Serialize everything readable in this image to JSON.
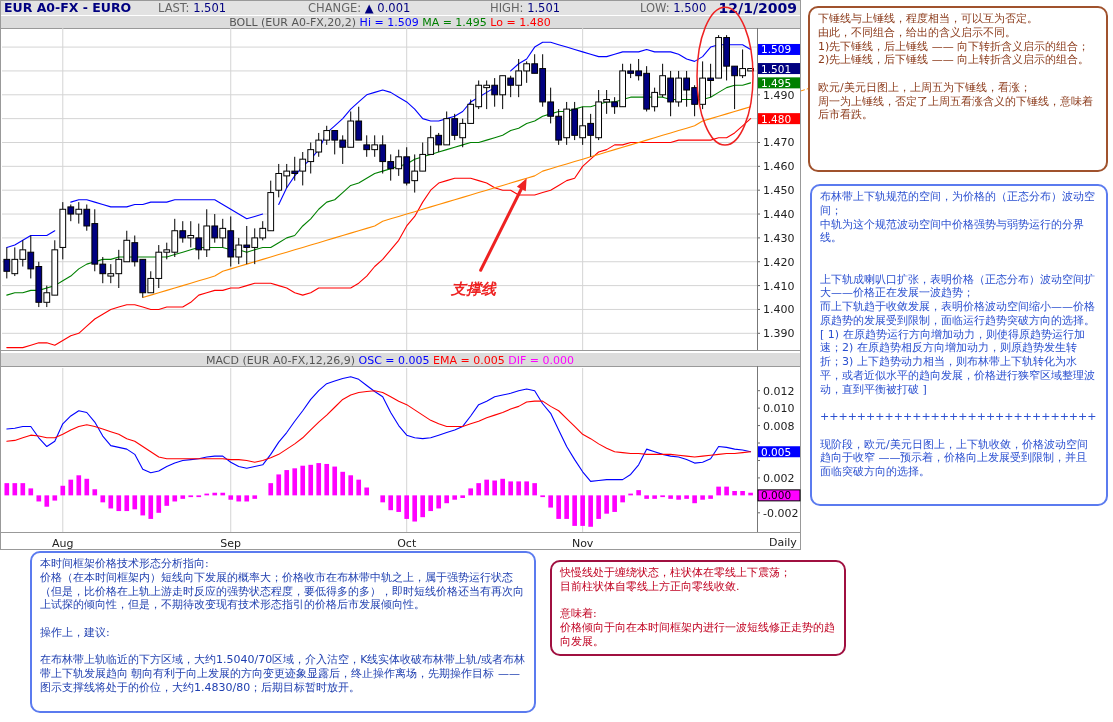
{
  "chart_data": [
    {
      "type": "candlestick",
      "title": "EUR A0-FX - EURO",
      "subtitle": "BOLL (EUR A0-FX,20,2)",
      "categories": [
        null,
        null,
        null,
        null,
        null,
        null,
        null,
        null,
        null,
        null,
        null,
        null,
        null,
        null,
        null,
        null,
        null,
        null,
        null,
        null,
        null,
        null,
        null,
        null,
        null,
        null,
        null,
        null,
        null,
        null,
        null,
        null,
        null,
        null,
        null,
        null,
        null,
        null,
        null,
        null,
        null,
        null,
        null,
        null,
        null,
        null,
        null,
        null,
        null,
        null,
        null,
        null,
        null,
        null,
        null,
        null,
        null,
        null,
        null,
        null,
        null,
        null,
        null,
        null,
        null,
        null,
        null,
        null,
        null,
        null,
        null,
        null,
        null,
        null,
        null,
        null,
        null,
        null,
        null,
        null,
        null,
        null,
        null,
        null,
        null,
        null,
        null,
        null,
        null,
        null,
        null,
        null,
        null,
        null
      ],
      "ohlc": [
        [
          1.421,
          1.426,
          1.413,
          1.416
        ],
        [
          1.415,
          1.426,
          1.414,
          1.421
        ],
        [
          1.421,
          1.429,
          1.418,
          1.425
        ],
        [
          1.424,
          1.431,
          1.413,
          1.417
        ],
        [
          1.418,
          1.42,
          1.401,
          1.403
        ],
        [
          1.403,
          1.41,
          1.401,
          1.407
        ],
        [
          1.406,
          1.429,
          1.406,
          1.425
        ],
        [
          1.426,
          1.445,
          1.421,
          1.442
        ],
        [
          1.443,
          1.444,
          1.437,
          1.44
        ],
        [
          1.44,
          1.445,
          1.436,
          1.442
        ],
        [
          1.442,
          1.444,
          1.433,
          1.435
        ],
        [
          1.436,
          1.442,
          1.416,
          1.419
        ],
        [
          1.419,
          1.422,
          1.411,
          1.415
        ],
        [
          1.414,
          1.419,
          1.411,
          1.415
        ],
        [
          1.415,
          1.425,
          1.409,
          1.421
        ],
        [
          1.42,
          1.433,
          1.42,
          1.429
        ],
        [
          1.428,
          1.431,
          1.418,
          1.42
        ],
        [
          1.421,
          1.421,
          1.405,
          1.407
        ],
        [
          1.407,
          1.416,
          1.407,
          1.413
        ],
        [
          1.413,
          1.427,
          1.409,
          1.424
        ],
        [
          1.424,
          1.428,
          1.421,
          1.425
        ],
        [
          1.424,
          1.438,
          1.422,
          1.433
        ],
        [
          1.433,
          1.437,
          1.428,
          1.43
        ],
        [
          1.43,
          1.437,
          1.426,
          1.431
        ],
        [
          1.43,
          1.436,
          1.421,
          1.425
        ],
        [
          1.425,
          1.442,
          1.422,
          1.435
        ],
        [
          1.435,
          1.44,
          1.428,
          1.43
        ],
        [
          1.43,
          1.438,
          1.426,
          1.434
        ],
        [
          1.433,
          1.439,
          1.418,
          1.422
        ],
        [
          1.422,
          1.43,
          1.419,
          1.427
        ],
        [
          1.427,
          1.435,
          1.419,
          1.426
        ],
        [
          1.426,
          1.434,
          1.419,
          1.43
        ],
        [
          1.43,
          1.437,
          1.429,
          1.434
        ],
        [
          1.433,
          1.454,
          1.433,
          1.449
        ],
        [
          1.45,
          1.461,
          1.447,
          1.457
        ],
        [
          1.456,
          1.461,
          1.451,
          1.458
        ],
        [
          1.458,
          1.464,
          1.454,
          1.457
        ],
        [
          1.458,
          1.466,
          1.452,
          1.463
        ],
        [
          1.462,
          1.47,
          1.457,
          1.467
        ],
        [
          1.466,
          1.474,
          1.464,
          1.471
        ],
        [
          1.471,
          1.477,
          1.469,
          1.475
        ],
        [
          1.475,
          1.475,
          1.465,
          1.471
        ],
        [
          1.471,
          1.473,
          1.461,
          1.468
        ],
        [
          1.468,
          1.483,
          1.468,
          1.479
        ],
        [
          1.479,
          1.485,
          1.471,
          1.471
        ],
        [
          1.469,
          1.473,
          1.464,
          1.467
        ],
        [
          1.467,
          1.473,
          1.464,
          1.469
        ],
        [
          1.469,
          1.473,
          1.457,
          1.462
        ],
        [
          1.462,
          1.465,
          1.454,
          1.459
        ],
        [
          1.459,
          1.467,
          1.456,
          1.464
        ],
        [
          1.464,
          1.468,
          1.452,
          1.453
        ],
        [
          1.454,
          1.465,
          1.449,
          1.458
        ],
        [
          1.458,
          1.47,
          1.458,
          1.465
        ],
        [
          1.465,
          1.477,
          1.465,
          1.472
        ],
        [
          1.473,
          1.474,
          1.466,
          1.469
        ],
        [
          1.469,
          1.483,
          1.469,
          1.48
        ],
        [
          1.48,
          1.482,
          1.471,
          1.473
        ],
        [
          1.472,
          1.48,
          1.468,
          1.478
        ],
        [
          1.478,
          1.488,
          1.478,
          1.486
        ],
        [
          1.485,
          1.496,
          1.484,
          1.494
        ],
        [
          1.493,
          1.496,
          1.484,
          1.494
        ],
        [
          1.494,
          1.497,
          1.485,
          1.49
        ],
        [
          1.49,
          1.498,
          1.484,
          1.498
        ],
        [
          1.497,
          1.498,
          1.489,
          1.494
        ],
        [
          1.494,
          1.505,
          1.489,
          1.5
        ],
        [
          1.5,
          1.504,
          1.495,
          1.503
        ],
        [
          1.503,
          1.507,
          1.499,
          1.499
        ],
        [
          1.501,
          1.507,
          1.485,
          1.487
        ],
        [
          1.487,
          1.493,
          1.478,
          1.481
        ],
        [
          1.481,
          1.484,
          1.469,
          1.471
        ],
        [
          1.472,
          1.487,
          1.469,
          1.484
        ],
        [
          1.484,
          1.487,
          1.471,
          1.473
        ],
        [
          1.472,
          1.485,
          1.469,
          1.477
        ],
        [
          1.478,
          1.482,
          1.464,
          1.473
        ],
        [
          1.472,
          1.492,
          1.471,
          1.487
        ],
        [
          1.487,
          1.492,
          1.482,
          1.488
        ],
        [
          1.487,
          1.489,
          1.482,
          1.485
        ],
        [
          1.485,
          1.503,
          1.485,
          1.5
        ],
        [
          1.5,
          1.503,
          1.497,
          1.499
        ],
        [
          1.5,
          1.505,
          1.496,
          1.498
        ],
        [
          1.499,
          1.502,
          1.483,
          1.484
        ],
        [
          1.485,
          1.493,
          1.483,
          1.491
        ],
        [
          1.49,
          1.503,
          1.489,
          1.498
        ],
        [
          1.497,
          1.5,
          1.481,
          1.487
        ],
        [
          1.487,
          1.5,
          1.485,
          1.497
        ],
        [
          1.497,
          1.5,
          1.485,
          1.492
        ],
        [
          1.493,
          1.494,
          1.481,
          1.486
        ],
        [
          1.486,
          1.504,
          1.484,
          1.497
        ],
        [
          1.497,
          1.503,
          1.489,
          1.496
        ],
        [
          1.497,
          1.515,
          1.497,
          1.514
        ],
        [
          1.514,
          1.515,
          1.496,
          1.502
        ],
        [
          1.502,
          1.502,
          1.484,
          1.498
        ],
        [
          1.498,
          1.509,
          1.497,
          1.501
        ],
        [
          1.5,
          1.501,
          1.5,
          1.501
        ]
      ],
      "value_labels": [
        null,
        null,
        null,
        null,
        null,
        null,
        null,
        null,
        null,
        null,
        null,
        null,
        null,
        null,
        null,
        null,
        null,
        null,
        null,
        null,
        null,
        null,
        null,
        null,
        null,
        null,
        null,
        null,
        null,
        null,
        null,
        null,
        null,
        null,
        null,
        null,
        null,
        null,
        null,
        null,
        null,
        null,
        null,
        null,
        null,
        null,
        null,
        null,
        null,
        null,
        null,
        null,
        null,
        null,
        null,
        null,
        null,
        null,
        null,
        null,
        null,
        null,
        null,
        null,
        null,
        null,
        null,
        null,
        null,
        null,
        null,
        null,
        null,
        null,
        null,
        null,
        null,
        null,
        null,
        null,
        null,
        null,
        null,
        null,
        null,
        null,
        null,
        null,
        null,
        null,
        null,
        null,
        null,
        "1.501"
      ],
      "series": [
        {
          "type": "line",
          "name": "Hi = 1.509",
          "color": "#0000ff",
          "values": [
            1.426,
            1.427,
            1.429,
            1.431,
            1.431,
            1.431,
            1.433,
            null,
            1.445,
            1.446,
            1.446,
            1.445,
            1.444,
            1.443,
            1.443,
            1.443,
            1.444,
            1.444,
            1.445,
            1.445,
            1.445,
            1.446,
            1.446,
            1.446,
            1.446,
            1.446,
            1.446,
            1.444,
            1.442,
            1.44,
            1.438,
            1.439,
            1.44,
            null,
            1.444,
            1.451,
            1.456,
            1.46,
            1.463,
            1.467,
            1.474,
            1.477,
            1.48,
            1.484,
            1.487,
            1.49,
            1.491,
            1.492,
            1.491,
            1.489,
            1.487,
            1.484,
            1.48,
            1.479,
            1.479,
            1.48,
            1.481,
            1.483,
            1.487,
            1.489,
            1.491,
            1.493,
            null,
            1.5,
            1.503,
            1.505,
            1.51,
            1.512,
            1.512,
            1.511,
            1.51,
            1.509,
            1.508,
            1.507,
            1.506,
            1.506,
            1.507,
            1.508,
            1.508,
            1.508,
            1.509,
            1.508,
            1.508,
            1.508,
            1.507,
            1.505,
            1.504,
            1.506,
            1.51,
            1.511,
            1.511,
            1.511,
            1.511,
            1.509
          ],
          "value_labels": [
            null,
            null,
            null,
            null,
            null,
            null,
            null,
            null,
            null,
            null,
            null,
            null,
            null,
            null,
            null,
            null,
            null,
            null,
            null,
            null,
            null,
            null,
            null,
            null,
            null,
            null,
            null,
            null,
            null,
            null,
            null,
            null,
            null,
            null,
            null,
            null,
            null,
            null,
            null,
            null,
            null,
            null,
            null,
            null,
            null,
            null,
            null,
            null,
            null,
            null,
            null,
            null,
            null,
            null,
            null,
            null,
            null,
            null,
            null,
            null,
            null,
            null,
            null,
            null,
            null,
            null,
            null,
            null,
            null,
            null,
            null,
            null,
            null,
            null,
            null,
            null,
            null,
            null,
            null,
            null,
            null,
            null,
            null,
            null,
            null,
            null,
            null,
            null,
            null,
            null,
            null,
            null,
            null,
            "1.509"
          ]
        },
        {
          "type": "line",
          "name": "MA = 1.495",
          "color": "#008000",
          "values": [
            1.406,
            1.407,
            1.407,
            1.408,
            1.408,
            1.409,
            1.41,
            1.412,
            1.414,
            1.417,
            1.419,
            1.42,
            1.421,
            1.421,
            1.422,
            1.422,
            1.422,
            1.422,
            1.422,
            1.422,
            1.422,
            1.423,
            1.424,
            1.425,
            1.426,
            1.426,
            1.426,
            1.426,
            1.425,
            1.425,
            1.424,
            1.425,
            1.426,
            1.426,
            1.428,
            1.43,
            1.431,
            1.435,
            1.438,
            1.442,
            1.445,
            1.446,
            1.449,
            1.452,
            1.453,
            1.455,
            1.457,
            1.458,
            1.459,
            1.46,
            1.461,
            1.463,
            1.464,
            1.465,
            1.466,
            1.467,
            1.468,
            1.469,
            1.47,
            1.47,
            1.471,
            1.472,
            1.473,
            1.475,
            1.476,
            1.478,
            1.479,
            1.481,
            1.482,
            1.483,
            1.483,
            1.484,
            1.485,
            1.485,
            1.486,
            1.487,
            1.487,
            1.488,
            1.489,
            1.489,
            1.489,
            1.489,
            1.489,
            1.488,
            1.488,
            1.488,
            1.488,
            1.488,
            1.489,
            1.491,
            1.493,
            1.494,
            1.494,
            1.495
          ],
          "value_labels": [
            null,
            null,
            null,
            null,
            null,
            null,
            null,
            null,
            null,
            null,
            null,
            null,
            null,
            null,
            null,
            null,
            null,
            null,
            null,
            null,
            null,
            null,
            null,
            null,
            null,
            null,
            null,
            null,
            null,
            null,
            null,
            null,
            null,
            null,
            null,
            null,
            null,
            null,
            null,
            null,
            null,
            null,
            null,
            null,
            null,
            null,
            null,
            null,
            null,
            null,
            null,
            null,
            null,
            null,
            null,
            null,
            null,
            null,
            null,
            null,
            null,
            null,
            null,
            null,
            null,
            null,
            null,
            null,
            null,
            null,
            null,
            null,
            null,
            null,
            null,
            null,
            null,
            null,
            null,
            null,
            null,
            null,
            null,
            null,
            null,
            null,
            null,
            null,
            null,
            null,
            null,
            null,
            null,
            "1.495"
          ]
        },
        {
          "type": "line",
          "name": "Lo = 1.480",
          "color": "#ff0000",
          "values": [
            1.384,
            1.384,
            1.384,
            1.385,
            1.386,
            1.386,
            1.385,
            1.387,
            1.389,
            1.39,
            1.393,
            1.396,
            1.398,
            1.4,
            1.401,
            1.402,
            1.402,
            1.401,
            1.4,
            1.4,
            1.401,
            1.401,
            1.401,
            1.403,
            1.406,
            1.407,
            1.408,
            1.408,
            1.409,
            1.409,
            1.41,
            1.411,
            1.411,
            1.411,
            1.41,
            1.409,
            1.407,
            1.406,
            1.407,
            1.409,
            1.409,
            1.409,
            1.409,
            1.409,
            1.411,
            1.414,
            1.418,
            1.421,
            1.425,
            1.429,
            1.435,
            1.439,
            1.445,
            1.45,
            1.453,
            1.454,
            1.455,
            1.455,
            1.455,
            1.454,
            1.453,
            1.451,
            1.45,
            1.45,
            1.448,
            1.448,
            1.448,
            1.449,
            1.45,
            1.452,
            1.454,
            1.455,
            1.46,
            1.463,
            1.466,
            1.467,
            1.469,
            1.469,
            1.47,
            1.47,
            1.47,
            1.47,
            1.47,
            1.47,
            1.471,
            1.471,
            1.471,
            1.471,
            1.471,
            1.472,
            1.472,
            1.474,
            1.477,
            1.48
          ],
          "value_labels": [
            null,
            null,
            null,
            null,
            null,
            null,
            null,
            null,
            null,
            null,
            null,
            null,
            null,
            null,
            null,
            null,
            null,
            null,
            null,
            null,
            null,
            null,
            null,
            null,
            null,
            null,
            null,
            null,
            null,
            null,
            null,
            null,
            null,
            null,
            null,
            null,
            null,
            null,
            null,
            null,
            null,
            null,
            null,
            null,
            null,
            null,
            null,
            null,
            null,
            null,
            null,
            null,
            null,
            null,
            null,
            null,
            null,
            null,
            null,
            null,
            null,
            null,
            null,
            null,
            null,
            null,
            null,
            null,
            null,
            null,
            null,
            null,
            null,
            null,
            null,
            null,
            null,
            null,
            null,
            null,
            null,
            null,
            null,
            null,
            null,
            null,
            null,
            null,
            null,
            null,
            null,
            null,
            null,
            "1.480"
          ]
        },
        {
          "type": "line",
          "color": "#ff8c00",
          "values": [
            null,
            null,
            null,
            null,
            null,
            null,
            null,
            null,
            null,
            null,
            null,
            null,
            null,
            null,
            null,
            null,
            null,
            1.405,
            1.406,
            1.407,
            1.408,
            1.409,
            1.41,
            1.411,
            1.412,
            1.413,
            1.414,
            1.416,
            1.417,
            1.418,
            1.419,
            1.42,
            1.421,
            1.422,
            1.423,
            1.424,
            1.425,
            1.426,
            1.427,
            1.428,
            1.429,
            1.43,
            1.431,
            1.432,
            1.433,
            1.434,
            1.435,
            1.437,
            1.438,
            1.439,
            1.44,
            1.441,
            1.442,
            1.443,
            1.444,
            1.445,
            1.446,
            1.447,
            1.448,
            1.449,
            1.45,
            1.451,
            1.452,
            1.453,
            1.454,
            1.455,
            1.456,
            1.458,
            1.459,
            1.46,
            1.461,
            1.462,
            1.463,
            1.464,
            1.465,
            1.466,
            1.467,
            1.468,
            1.469,
            1.47,
            1.471,
            1.472,
            1.473,
            1.474,
            1.475,
            1.476,
            1.477,
            1.479,
            1.48,
            1.481,
            1.482,
            1.483,
            1.484,
            1.485
          ]
        }
      ],
      "ylim": [
        1.383,
        1.518
      ],
      "yticks": [
        {
          "value": 1.39,
          "label": "1.390"
        },
        {
          "value": 1.4,
          "label": "1.400"
        },
        {
          "value": 1.41,
          "label": "1.410"
        },
        {
          "value": 1.42,
          "label": "1.420"
        },
        {
          "value": 1.43,
          "label": "1.430"
        },
        {
          "value": 1.44,
          "label": "1.440"
        },
        {
          "value": 1.45,
          "label": "1.450"
        },
        {
          "value": 1.46,
          "label": "1.460"
        },
        {
          "value": 1.47,
          "label": "1.470"
        },
        {
          "value": 1.48,
          "label": null
        },
        {
          "value": 1.49,
          "label": "1.490"
        },
        {
          "value": 1.5,
          "label": null
        },
        {
          "value": 1.51,
          "label": null
        }
      ],
      "grid": true,
      "tick_labels": "y",
      "annotations": [
        "LAST: 1.501",
        "CHANGE: ▲ 0.001",
        "HIGH: 1.501",
        "LOW: 1.500",
        "12/1/2009",
        "支撑线",
        "下锤线与上锤线，程度相当，可以互为否定。",
        "由此，不同组合，给出的含义启示不同。",
        "1)先下锤线，后上锤线 —— 向下转折含义启示的组合；",
        "2)先上锤线，后下锤线 —— 向上转折含义启示的组合。",
        "欧元/美元日图上，上周五为下锤线，看涨；",
        "周一为上锤线，否定了上周五看涨含义的下锤线，意味着后市看跌。",
        "布林带上下轨规范的空间，为价格的（正态分布）波动空间；",
        "中轨为这个规范波动空间中价格强势与弱势运行的分界线。",
        "上下轨成喇叭口扩张，表明价格（正态分布）波动空间扩大——价格正在发展一波趋势；",
        "而上下轨趋于收敛发展，表明价格波动空间缩小——价格原趋势的发展受到限制，面临运行趋势突破方向的选择。[ 1) 在原趋势运行方向增加动力，则使得原趋势运行加速；2) 在原趋势相反方向增加动力，则原趋势发生转折；3) 上下趋势动力相当，则布林带上下轨转化为水平，或者近似水平的趋向发展，价格进行狭窄区域整理波动，直到平衡被打破 ]",
        "++++++++++++++++++++++++++++++",
        "现阶段，欧元/美元日图上，上下轨收敛，价格波动空间趋向于收窄 ——预示着，价格向上发展受到限制，并且面临突破方向的选择。",
        "本时间框架价格技术形态分析指向:",
        "价格（在本时间框架内）短线向下发展的概率大；价格收市在布林带中轨之上，属于强势运行状态（但是，比价格在上轨上游走时反应的强势状态程度，要低得多的多），即时短线价格还当有再次向上试探的倾向性，但是，不期待改变现有技术形态指引的价格后市发展倾向性。",
        "操作上，建议:",
        "在布林带上轨临近的下方区域，大约1.5040/70区域，介入沽空，K线实体收破布林带上轨/或者布林带上下轨发展趋向 朝向有利于向上发展的方向变更迹象显露后，终止操作离场，先期操作目标 —— 图示支撑线将处于的价位，大约1.4830/80；后期目标暂时放开。"
      ]
    },
    {
      "type": "line",
      "title": "MACD (EUR A0-FX,12,26,9)",
      "categories": [
        null,
        null,
        null,
        null,
        null,
        null,
        null,
        "Aug",
        null,
        null,
        null,
        null,
        null,
        null,
        null,
        null,
        null,
        null,
        null,
        null,
        null,
        null,
        null,
        null,
        null,
        null,
        null,
        null,
        "Sep",
        null,
        null,
        null,
        null,
        null,
        null,
        null,
        null,
        null,
        null,
        null,
        null,
        null,
        null,
        null,
        null,
        null,
        null,
        null,
        null,
        null,
        "Oct",
        null,
        null,
        null,
        null,
        null,
        null,
        null,
        null,
        null,
        null,
        null,
        null,
        null,
        null,
        null,
        null,
        null,
        null,
        null,
        null,
        null,
        "Nov",
        null,
        null,
        null,
        null,
        null,
        null,
        null,
        null,
        null,
        null,
        null,
        null,
        null,
        null,
        null,
        null,
        null,
        null,
        null,
        null,
        null
      ],
      "series": [
        {
          "type": "line",
          "name": "OSC = 0.005",
          "color": "#0000ff",
          "values": [
            0.0076,
            0.0077,
            0.0079,
            0.0079,
            0.0066,
            0.0056,
            0.0062,
            0.0082,
            0.0091,
            0.0097,
            0.0095,
            0.0084,
            0.0068,
            0.0057,
            0.0055,
            0.0053,
            0.0047,
            0.003,
            0.0026,
            0.0028,
            0.0033,
            0.0037,
            0.004,
            0.0041,
            0.0042,
            0.0044,
            0.0045,
            0.0045,
            0.0038,
            0.0033,
            0.0031,
            0.0033,
            0.0035,
            0.0047,
            0.0061,
            0.0072,
            0.0085,
            0.0097,
            0.011,
            0.012,
            0.0128,
            0.0131,
            0.0134,
            0.0136,
            0.0133,
            0.0126,
            0.0119,
            0.0113,
            0.0095,
            0.008,
            0.0069,
            0.0066,
            0.0065,
            0.0066,
            0.0069,
            0.0072,
            0.0075,
            0.0079,
            0.0091,
            0.0104,
            0.0108,
            0.0113,
            0.0115,
            0.0117,
            0.012,
            0.0122,
            0.012,
            0.0105,
            0.0094,
            0.0075,
            0.0056,
            0.0041,
            0.0027,
            0.0016,
            0.0017,
            0.0018,
            0.0018,
            0.0018,
            0.0024,
            0.0035,
            0.0053,
            0.005,
            0.0047,
            0.0045,
            0.0044,
            0.0041,
            0.0037,
            0.0038,
            0.0042,
            0.0056,
            0.0055,
            0.0053,
            0.0052,
            0.005
          ],
          "value_labels": [
            null,
            null,
            null,
            null,
            null,
            null,
            null,
            null,
            null,
            null,
            null,
            null,
            null,
            null,
            null,
            null,
            null,
            null,
            null,
            null,
            null,
            null,
            null,
            null,
            null,
            null,
            null,
            null,
            null,
            null,
            null,
            null,
            null,
            null,
            null,
            null,
            null,
            null,
            null,
            null,
            null,
            null,
            null,
            null,
            null,
            null,
            null,
            null,
            null,
            null,
            null,
            null,
            null,
            null,
            null,
            null,
            null,
            null,
            null,
            null,
            null,
            null,
            null,
            null,
            null,
            null,
            null,
            null,
            null,
            null,
            null,
            null,
            null,
            null,
            null,
            null,
            null,
            null,
            null,
            null,
            null,
            null,
            null,
            null,
            null,
            null,
            null,
            null,
            null,
            null,
            null,
            null,
            null,
            "0.005"
          ]
        },
        {
          "type": "line",
          "name": "EMA = 0.005",
          "color": "#ff0000",
          "values": [
            0.0062,
            0.0063,
            0.0066,
            0.0069,
            0.0068,
            0.0066,
            0.0066,
            0.007,
            0.0075,
            0.0079,
            0.0081,
            0.0079,
            0.0076,
            0.0073,
            0.007,
            0.0065,
            0.0062,
            0.0056,
            0.005,
            0.0044,
            0.0042,
            0.0042,
            0.0042,
            0.0042,
            0.0042,
            0.0042,
            0.0042,
            0.0042,
            0.0041,
            0.0041,
            0.004,
            0.0038,
            0.004,
            0.0043,
            0.0047,
            0.0053,
            0.0059,
            0.0066,
            0.0075,
            0.0084,
            0.0092,
            0.0101,
            0.011,
            0.0115,
            0.0118,
            0.0119,
            0.012,
            0.0118,
            0.0113,
            0.0108,
            0.0104,
            0.0098,
            0.0092,
            0.0086,
            0.0082,
            0.0079,
            0.0079,
            0.0079,
            0.0082,
            0.0085,
            0.0089,
            0.0092,
            0.0095,
            0.0099,
            0.0102,
            0.0107,
            0.0108,
            0.0108,
            0.0102,
            0.0097,
            0.0088,
            0.0079,
            0.007,
            0.0065,
            0.0059,
            0.0054,
            0.005,
            0.0049,
            0.0048,
            0.0048,
            0.0047,
            0.0047,
            0.0047,
            0.0047,
            0.0046,
            0.0045,
            0.0044,
            0.0045,
            0.0046,
            0.0047,
            0.0048,
            0.0048,
            0.0049,
            0.005
          ]
        },
        {
          "type": "bar",
          "name": "DIF = 0.000",
          "color": "#ff00ff",
          "values": [
            0.0014,
            0.0014,
            0.0014,
            0.0008,
            -0.0007,
            -0.0013,
            -0.0006,
            0.0011,
            0.0018,
            0.0023,
            0.0019,
            0.0007,
            -0.0008,
            -0.0015,
            -0.0018,
            -0.0018,
            -0.0016,
            -0.0023,
            -0.0027,
            -0.002,
            -0.0012,
            -0.0007,
            -0.0004,
            -0.0002,
            -0.0002,
            0.0002,
            0.0003,
            0.0003,
            -0.0005,
            -0.0007,
            -0.0007,
            -0.0004,
            0,
            0.0014,
            0.0024,
            0.0029,
            0.0031,
            0.0034,
            0.0035,
            0.0037,
            0.0036,
            0.0033,
            0.0027,
            0.0023,
            0.0018,
            0.0009,
            0,
            -0.0008,
            -0.0017,
            -0.0019,
            -0.0027,
            -0.003,
            -0.0025,
            -0.0018,
            -0.0015,
            -0.0009,
            -0.0005,
            -0.0003,
            0.0008,
            0.0014,
            0.0018,
            0.0017,
            0.0019,
            0.0016,
            0.0016,
            0.0016,
            0.0014,
            -0.0002,
            -0.0014,
            -0.0027,
            -0.0027,
            -0.0035,
            -0.0035,
            -0.0036,
            -0.0027,
            -0.0021,
            -0.0019,
            -0.0008,
            0.0002,
            0.0006,
            -0.0004,
            -0.0004,
            -0.0002,
            -0.0004,
            -0.0005,
            -0.0004,
            -0.0009,
            -0.0005,
            -0.0004,
            0.001,
            0.001,
            0.0005,
            0.0005,
            0.0003
          ]
        }
      ],
      "ylim": [
        -0.0042,
        0.0146
      ],
      "yticks": [
        -0.002,
        {
          "value": 0,
          "label": null
        },
        0.002,
        {
          "value": 0.004,
          "label": null
        },
        {
          "value": 0.006,
          "label": null
        },
        0.008,
        {
          "value": 0.01,
          "label": "0.010"
        },
        0.012
      ],
      "grid": "x",
      "annotations": [
        "Daily",
        "0.000",
        "快慢线处于缠绕状态，柱状体在零线上下震荡；",
        "目前柱状体自零线上方正向零线收敛.",
        "意味着:",
        "价格倾向于向在本时间框架内进行一波短线修正走势的趋向发展。"
      ]
    }
  ]
}
